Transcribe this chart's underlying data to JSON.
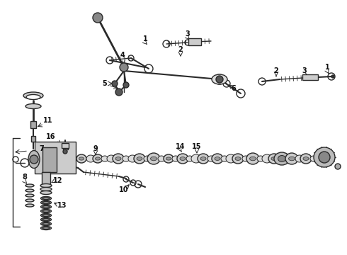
{
  "bg_color": "#ffffff",
  "line_color": "#2a2a2a",
  "label_color": "#111111",
  "fig_width": 4.9,
  "fig_height": 3.6,
  "dpi": 100,
  "xlim": [
    0,
    490
  ],
  "ylim": [
    0,
    360
  ]
}
